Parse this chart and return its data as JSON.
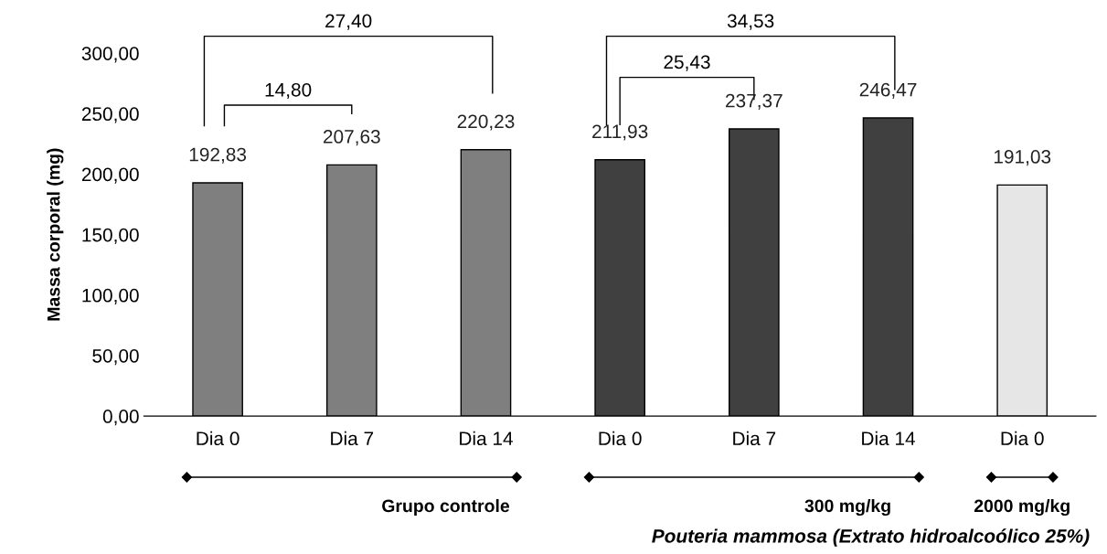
{
  "chart_data": {
    "type": "bar",
    "ylabel": "Massa corporal (mg)",
    "categories": [
      "Dia 0",
      "Dia 7",
      "Dia 14",
      "Dia 0",
      "Dia 7",
      "Dia 14",
      "Dia 0"
    ],
    "values": [
      192.83,
      207.63,
      220.23,
      211.93,
      237.37,
      246.47,
      191.03
    ],
    "value_labels": [
      "192,83",
      "207,63",
      "220,23",
      "211,93",
      "237,37",
      "246,47",
      "191,03"
    ],
    "colors": [
      "#7f7f7f",
      "#7f7f7f",
      "#7f7f7f",
      "#404040",
      "#404040",
      "#404040",
      "#e6e6e6"
    ],
    "ylim": [
      0,
      300
    ],
    "yticks": [
      {
        "value": 0,
        "label": "0,00"
      },
      {
        "value": 50,
        "label": "50,00"
      },
      {
        "value": 100,
        "label": "100,00"
      },
      {
        "value": 150,
        "label": "150,00"
      },
      {
        "value": 200,
        "label": "200,00"
      },
      {
        "value": 250,
        "label": "250,00"
      },
      {
        "value": 300,
        "label": "300,00"
      }
    ],
    "grid": false,
    "annotations": [
      "27,40",
      "14,80",
      "34,53",
      "25,43",
      "Grupo controle",
      "300 mg/kg",
      "2000 mg/kg",
      "Pouteria mammosa (Extrato hidroalcoólico 25%)"
    ]
  }
}
